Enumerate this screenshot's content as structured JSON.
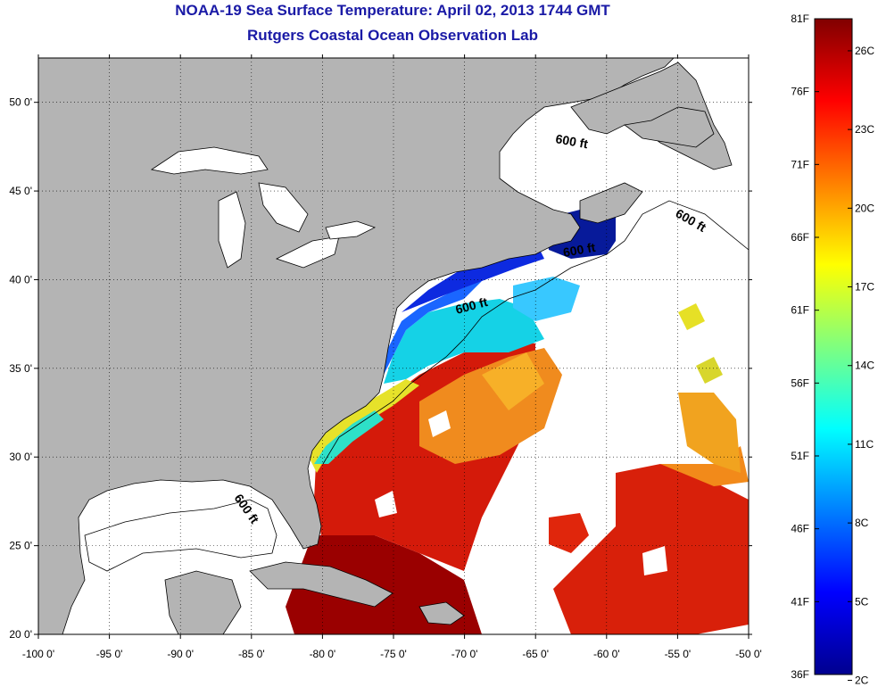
{
  "title": "NOAA-19 Sea Surface Temperature:  April 02, 2013 1744 GMT",
  "subtitle": "Rutgers Coastal Ocean Observation Lab",
  "map": {
    "x_ticks": [
      "-100 0'",
      "-95 0'",
      "-90 0'",
      "-85 0'",
      "-80 0'",
      "-75 0'",
      "-70 0'",
      "-65 0'",
      "-60 0'",
      "-55 0'",
      "-50 0'"
    ],
    "y_ticks": [
      "50 0'",
      "45 0'",
      "40 0'",
      "35 0'",
      "30 0'",
      "25 0'",
      "20 0'"
    ],
    "contour_label": "600 ft",
    "land_color": "#b4b4b4",
    "cloud_color": "#ffffff"
  },
  "colorbar": {
    "fahrenheit_labels": [
      "81F",
      "76F",
      "71F",
      "66F",
      "61F",
      "56F",
      "51F",
      "46F",
      "41F",
      "36F"
    ],
    "celsius_labels": [
      "26C",
      "23C",
      "20C",
      "17C",
      "14C",
      "11C",
      "8C",
      "5C",
      "2C"
    ],
    "range_f": [
      36,
      81
    ],
    "range_c": [
      2,
      27
    ],
    "colormap": "jet"
  }
}
